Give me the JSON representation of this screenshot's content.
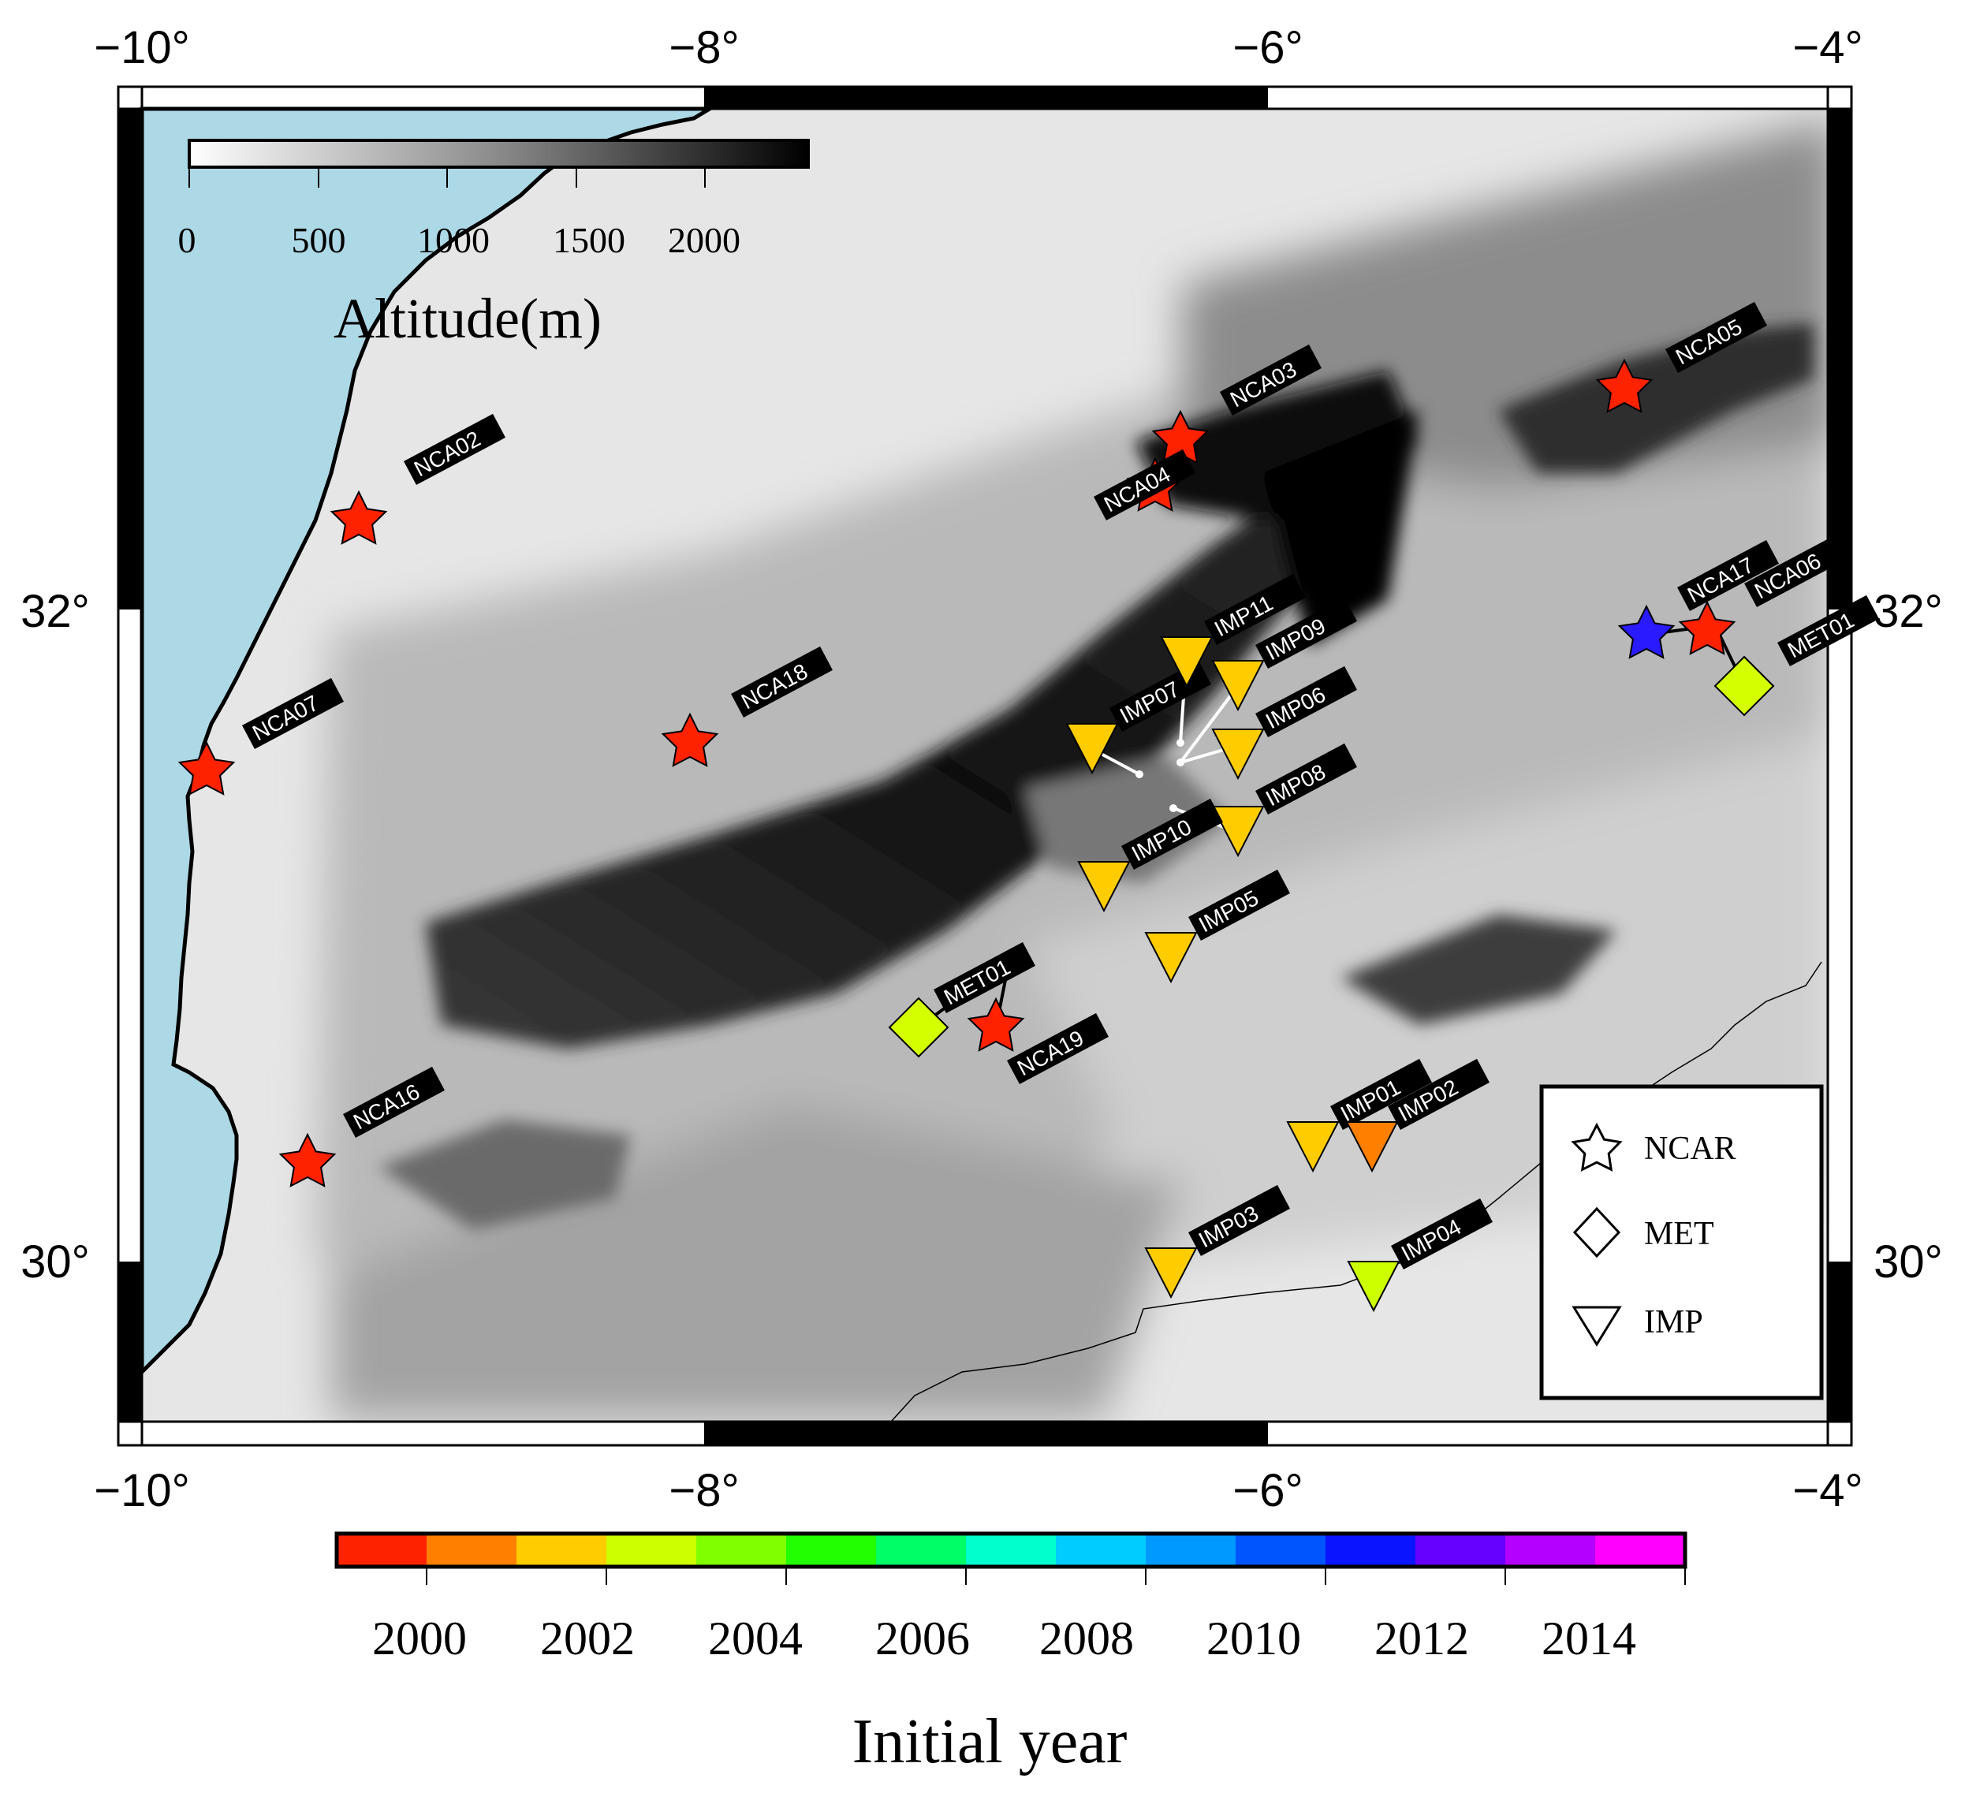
{
  "map": {
    "lon_ticks": [
      "−10°",
      "−8°",
      "−6°",
      "−4°"
    ],
    "lat_ticks": [
      "32°",
      "30°"
    ],
    "ocean_color": "#add8e6",
    "frame_color": "#000000"
  },
  "altitude_scale": {
    "title": "Altitude(m)",
    "ticks": [
      "0",
      "500",
      "1000",
      "1500",
      "2000"
    ],
    "range_m": [
      0,
      2400
    ]
  },
  "legend": {
    "items": [
      {
        "symbol": "star-icon",
        "label": "NCAR"
      },
      {
        "symbol": "diamond-icon",
        "label": "MET"
      },
      {
        "symbol": "triangle-down-icon",
        "label": "IMP"
      }
    ]
  },
  "year_colorbar": {
    "title": "Initial year",
    "ticks": [
      "2000",
      "2002",
      "2004",
      "2006",
      "2008",
      "2010",
      "2012",
      "2014"
    ],
    "colors": [
      "#ff2200",
      "#ff7f00",
      "#ffcc00",
      "#ccff00",
      "#80ff00",
      "#22ff00",
      "#00ff66",
      "#00ffcc",
      "#00ccff",
      "#0099ff",
      "#0055ff",
      "#0a14ff",
      "#6600ff",
      "#b300ff",
      "#ff00ff"
    ]
  },
  "stations": [
    {
      "id": "NCA02",
      "type": "NCAR",
      "color": "#ff2200"
    },
    {
      "id": "NCA03",
      "type": "NCAR",
      "color": "#ff2200"
    },
    {
      "id": "NCA04",
      "type": "NCAR",
      "color": "#ff2200"
    },
    {
      "id": "NCA05",
      "type": "NCAR",
      "color": "#ff2200"
    },
    {
      "id": "NCA06",
      "type": "NCAR",
      "color": "#ff2200"
    },
    {
      "id": "NCA07",
      "type": "NCAR",
      "color": "#ff2200"
    },
    {
      "id": "NCA16",
      "type": "NCAR",
      "color": "#ff2200"
    },
    {
      "id": "NCA17",
      "type": "NCAR",
      "color": "#2a1aff"
    },
    {
      "id": "NCA18",
      "type": "NCAR",
      "color": "#ff2200"
    },
    {
      "id": "NCA19",
      "type": "NCAR",
      "color": "#ff2200"
    },
    {
      "id": "MET01",
      "type": "MET",
      "color": "#d4ff00"
    },
    {
      "id": "MET01",
      "type": "MET",
      "color": "#d4ff00"
    },
    {
      "id": "IMP01",
      "type": "IMP",
      "color": "#ffcc00"
    },
    {
      "id": "IMP02",
      "type": "IMP",
      "color": "#ff7f00"
    },
    {
      "id": "IMP03",
      "type": "IMP",
      "color": "#ffcc00"
    },
    {
      "id": "IMP04",
      "type": "IMP",
      "color": "#ccff00"
    },
    {
      "id": "IMP05",
      "type": "IMP",
      "color": "#ffcc00"
    },
    {
      "id": "IMP06",
      "type": "IMP",
      "color": "#ffcc00"
    },
    {
      "id": "IMP07",
      "type": "IMP",
      "color": "#ffcc00"
    },
    {
      "id": "IMP08",
      "type": "IMP",
      "color": "#ffcc00"
    },
    {
      "id": "IMP09",
      "type": "IMP",
      "color": "#ffcc00"
    },
    {
      "id": "IMP10",
      "type": "IMP",
      "color": "#ffcc00"
    },
    {
      "id": "IMP11",
      "type": "IMP",
      "color": "#ffcc00"
    }
  ]
}
